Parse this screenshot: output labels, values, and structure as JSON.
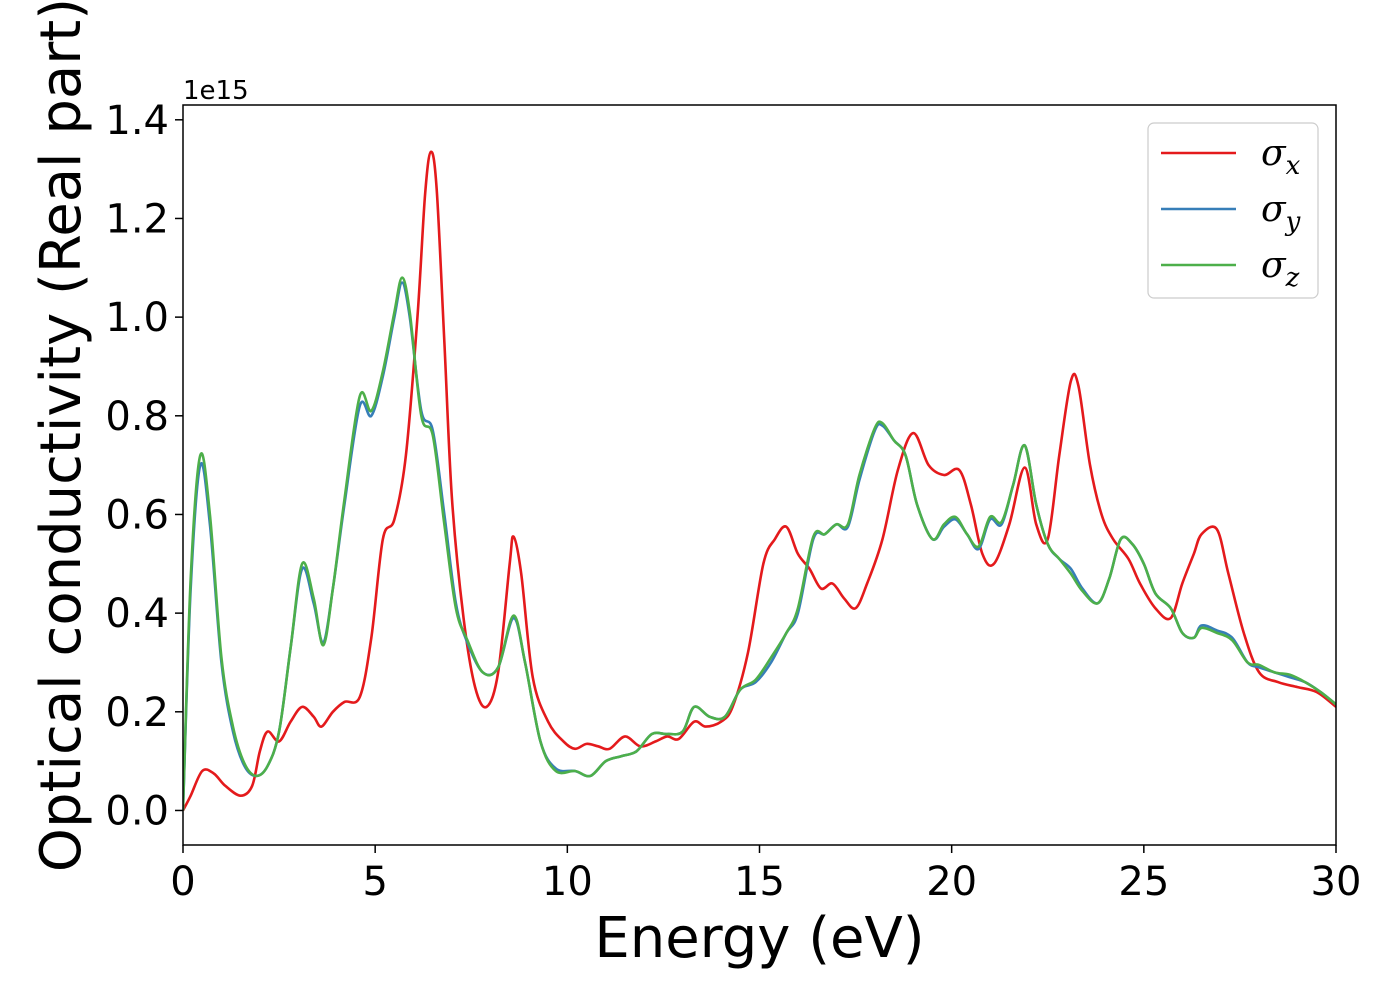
{
  "chart_data": {
    "type": "line",
    "xlabel": "Energy (eV)",
    "ylabel": "Optical conductivity (Real part)",
    "y_offset_text": "1e15",
    "xlim": [
      0,
      30
    ],
    "ylim": [
      -0.07,
      1.43
    ],
    "xticks": [
      0,
      5,
      10,
      15,
      20,
      25,
      30
    ],
    "xtick_labels": [
      "0",
      "5",
      "10",
      "15",
      "20",
      "25",
      "30"
    ],
    "yticks": [
      0.0,
      0.2,
      0.4,
      0.6,
      0.8,
      1.0,
      1.2,
      1.4
    ],
    "ytick_labels": [
      "0.0",
      "0.2",
      "0.4",
      "0.6",
      "0.8",
      "1.0",
      "1.2",
      "1.4"
    ],
    "grid": false,
    "legend_position": "top-right",
    "series": [
      {
        "name": "σx",
        "symbol": "σ",
        "subscript": "x",
        "color": "#e41a1c",
        "points": [
          [
            0,
            0.0
          ],
          [
            0.2,
            0.03
          ],
          [
            0.5,
            0.08
          ],
          [
            0.8,
            0.075
          ],
          [
            1.1,
            0.05
          ],
          [
            1.5,
            0.03
          ],
          [
            1.8,
            0.05
          ],
          [
            2.0,
            0.12
          ],
          [
            2.2,
            0.16
          ],
          [
            2.5,
            0.14
          ],
          [
            2.8,
            0.18
          ],
          [
            3.1,
            0.21
          ],
          [
            3.4,
            0.19
          ],
          [
            3.6,
            0.17
          ],
          [
            3.9,
            0.2
          ],
          [
            4.2,
            0.22
          ],
          [
            4.6,
            0.23
          ],
          [
            4.9,
            0.35
          ],
          [
            5.2,
            0.55
          ],
          [
            5.5,
            0.59
          ],
          [
            5.8,
            0.72
          ],
          [
            6.1,
            1.0
          ],
          [
            6.3,
            1.25
          ],
          [
            6.45,
            1.335
          ],
          [
            6.6,
            1.26
          ],
          [
            6.8,
            0.95
          ],
          [
            7.0,
            0.63
          ],
          [
            7.3,
            0.39
          ],
          [
            7.6,
            0.25
          ],
          [
            7.9,
            0.21
          ],
          [
            8.2,
            0.28
          ],
          [
            8.5,
            0.5
          ],
          [
            8.6,
            0.555
          ],
          [
            8.8,
            0.48
          ],
          [
            9.1,
            0.27
          ],
          [
            9.5,
            0.18
          ],
          [
            9.9,
            0.14
          ],
          [
            10.2,
            0.125
          ],
          [
            10.5,
            0.135
          ],
          [
            10.8,
            0.13
          ],
          [
            11.1,
            0.125
          ],
          [
            11.5,
            0.15
          ],
          [
            11.9,
            0.13
          ],
          [
            12.3,
            0.14
          ],
          [
            12.6,
            0.15
          ],
          [
            12.9,
            0.145
          ],
          [
            13.3,
            0.18
          ],
          [
            13.6,
            0.17
          ],
          [
            14.0,
            0.18
          ],
          [
            14.3,
            0.21
          ],
          [
            14.7,
            0.32
          ],
          [
            15.1,
            0.5
          ],
          [
            15.4,
            0.55
          ],
          [
            15.7,
            0.575
          ],
          [
            16.0,
            0.52
          ],
          [
            16.3,
            0.49
          ],
          [
            16.6,
            0.45
          ],
          [
            16.9,
            0.46
          ],
          [
            17.2,
            0.43
          ],
          [
            17.5,
            0.41
          ],
          [
            17.8,
            0.46
          ],
          [
            18.2,
            0.55
          ],
          [
            18.6,
            0.69
          ],
          [
            19.0,
            0.765
          ],
          [
            19.4,
            0.7
          ],
          [
            19.8,
            0.68
          ],
          [
            20.2,
            0.69
          ],
          [
            20.5,
            0.62
          ],
          [
            20.8,
            0.52
          ],
          [
            21.1,
            0.5
          ],
          [
            21.5,
            0.58
          ],
          [
            21.9,
            0.695
          ],
          [
            22.2,
            0.58
          ],
          [
            22.5,
            0.55
          ],
          [
            22.8,
            0.72
          ],
          [
            23.1,
            0.87
          ],
          [
            23.3,
            0.86
          ],
          [
            23.6,
            0.7
          ],
          [
            23.9,
            0.6
          ],
          [
            24.2,
            0.55
          ],
          [
            24.6,
            0.51
          ],
          [
            24.9,
            0.46
          ],
          [
            25.3,
            0.41
          ],
          [
            25.7,
            0.39
          ],
          [
            26.0,
            0.46
          ],
          [
            26.3,
            0.52
          ],
          [
            26.5,
            0.56
          ],
          [
            26.9,
            0.57
          ],
          [
            27.2,
            0.48
          ],
          [
            27.6,
            0.36
          ],
          [
            28.0,
            0.28
          ],
          [
            28.5,
            0.26
          ],
          [
            29.0,
            0.25
          ],
          [
            29.5,
            0.24
          ],
          [
            30.0,
            0.21
          ]
        ]
      },
      {
        "name": "σy",
        "symbol": "σ",
        "subscript": "y",
        "color": "#377eb8",
        "points": [
          [
            0,
            0.0
          ],
          [
            0.2,
            0.45
          ],
          [
            0.45,
            0.7
          ],
          [
            0.7,
            0.58
          ],
          [
            1.0,
            0.3
          ],
          [
            1.3,
            0.16
          ],
          [
            1.6,
            0.09
          ],
          [
            1.9,
            0.07
          ],
          [
            2.2,
            0.09
          ],
          [
            2.5,
            0.16
          ],
          [
            2.8,
            0.33
          ],
          [
            3.1,
            0.49
          ],
          [
            3.4,
            0.42
          ],
          [
            3.65,
            0.34
          ],
          [
            3.9,
            0.45
          ],
          [
            4.2,
            0.62
          ],
          [
            4.6,
            0.82
          ],
          [
            4.9,
            0.8
          ],
          [
            5.2,
            0.88
          ],
          [
            5.5,
            1.0
          ],
          [
            5.7,
            1.07
          ],
          [
            5.9,
            1.0
          ],
          [
            6.2,
            0.81
          ],
          [
            6.5,
            0.77
          ],
          [
            6.8,
            0.6
          ],
          [
            7.1,
            0.42
          ],
          [
            7.4,
            0.34
          ],
          [
            7.8,
            0.28
          ],
          [
            8.2,
            0.29
          ],
          [
            8.6,
            0.39
          ],
          [
            8.9,
            0.3
          ],
          [
            9.3,
            0.14
          ],
          [
            9.7,
            0.085
          ],
          [
            10.2,
            0.08
          ],
          [
            10.6,
            0.07
          ],
          [
            11.0,
            0.1
          ],
          [
            11.4,
            0.11
          ],
          [
            11.8,
            0.12
          ],
          [
            12.2,
            0.155
          ],
          [
            12.6,
            0.155
          ],
          [
            13.0,
            0.16
          ],
          [
            13.3,
            0.21
          ],
          [
            13.7,
            0.19
          ],
          [
            14.1,
            0.19
          ],
          [
            14.5,
            0.245
          ],
          [
            14.9,
            0.26
          ],
          [
            15.3,
            0.3
          ],
          [
            15.7,
            0.36
          ],
          [
            16.0,
            0.4
          ],
          [
            16.4,
            0.55
          ],
          [
            16.7,
            0.56
          ],
          [
            17.0,
            0.58
          ],
          [
            17.3,
            0.575
          ],
          [
            17.6,
            0.67
          ],
          [
            18.0,
            0.77
          ],
          [
            18.2,
            0.78
          ],
          [
            18.5,
            0.75
          ],
          [
            18.8,
            0.72
          ],
          [
            19.1,
            0.62
          ],
          [
            19.5,
            0.55
          ],
          [
            19.8,
            0.575
          ],
          [
            20.1,
            0.59
          ],
          [
            20.4,
            0.56
          ],
          [
            20.7,
            0.53
          ],
          [
            21.0,
            0.59
          ],
          [
            21.3,
            0.58
          ],
          [
            21.6,
            0.66
          ],
          [
            21.9,
            0.74
          ],
          [
            22.2,
            0.62
          ],
          [
            22.5,
            0.54
          ],
          [
            22.8,
            0.51
          ],
          [
            23.1,
            0.49
          ],
          [
            23.4,
            0.45
          ],
          [
            23.8,
            0.42
          ],
          [
            24.1,
            0.47
          ],
          [
            24.4,
            0.55
          ],
          [
            24.7,
            0.54
          ],
          [
            25.0,
            0.5
          ],
          [
            25.3,
            0.44
          ],
          [
            25.7,
            0.41
          ],
          [
            26.0,
            0.36
          ],
          [
            26.3,
            0.35
          ],
          [
            26.5,
            0.375
          ],
          [
            26.9,
            0.365
          ],
          [
            27.3,
            0.35
          ],
          [
            27.7,
            0.3
          ],
          [
            28.0,
            0.29
          ],
          [
            28.4,
            0.28
          ],
          [
            28.8,
            0.27
          ],
          [
            29.2,
            0.26
          ],
          [
            29.6,
            0.24
          ],
          [
            30.0,
            0.215
          ]
        ]
      },
      {
        "name": "σz",
        "symbol": "σ",
        "subscript": "z",
        "color": "#4daf4a",
        "points": [
          [
            0,
            0.0
          ],
          [
            0.2,
            0.47
          ],
          [
            0.45,
            0.72
          ],
          [
            0.7,
            0.6
          ],
          [
            1.0,
            0.31
          ],
          [
            1.3,
            0.17
          ],
          [
            1.6,
            0.095
          ],
          [
            1.9,
            0.07
          ],
          [
            2.2,
            0.09
          ],
          [
            2.5,
            0.16
          ],
          [
            2.8,
            0.33
          ],
          [
            3.1,
            0.5
          ],
          [
            3.4,
            0.43
          ],
          [
            3.65,
            0.335
          ],
          [
            3.9,
            0.45
          ],
          [
            4.2,
            0.63
          ],
          [
            4.6,
            0.84
          ],
          [
            4.9,
            0.81
          ],
          [
            5.2,
            0.89
          ],
          [
            5.5,
            1.01
          ],
          [
            5.7,
            1.08
          ],
          [
            5.9,
            1.01
          ],
          [
            6.2,
            0.8
          ],
          [
            6.5,
            0.76
          ],
          [
            6.8,
            0.58
          ],
          [
            7.1,
            0.41
          ],
          [
            7.4,
            0.345
          ],
          [
            7.8,
            0.28
          ],
          [
            8.2,
            0.29
          ],
          [
            8.6,
            0.395
          ],
          [
            8.9,
            0.3
          ],
          [
            9.3,
            0.14
          ],
          [
            9.7,
            0.08
          ],
          [
            10.2,
            0.08
          ],
          [
            10.6,
            0.07
          ],
          [
            11.0,
            0.1
          ],
          [
            11.4,
            0.11
          ],
          [
            11.8,
            0.12
          ],
          [
            12.2,
            0.155
          ],
          [
            12.6,
            0.155
          ],
          [
            13.0,
            0.16
          ],
          [
            13.3,
            0.21
          ],
          [
            13.7,
            0.19
          ],
          [
            14.1,
            0.19
          ],
          [
            14.5,
            0.245
          ],
          [
            14.9,
            0.265
          ],
          [
            15.3,
            0.31
          ],
          [
            15.7,
            0.36
          ],
          [
            16.0,
            0.41
          ],
          [
            16.4,
            0.555
          ],
          [
            16.7,
            0.56
          ],
          [
            17.0,
            0.58
          ],
          [
            17.3,
            0.58
          ],
          [
            17.6,
            0.68
          ],
          [
            18.0,
            0.775
          ],
          [
            18.2,
            0.785
          ],
          [
            18.5,
            0.75
          ],
          [
            18.8,
            0.72
          ],
          [
            19.1,
            0.62
          ],
          [
            19.5,
            0.55
          ],
          [
            19.8,
            0.58
          ],
          [
            20.1,
            0.595
          ],
          [
            20.4,
            0.56
          ],
          [
            20.7,
            0.535
          ],
          [
            21.0,
            0.595
          ],
          [
            21.3,
            0.585
          ],
          [
            21.6,
            0.66
          ],
          [
            21.9,
            0.74
          ],
          [
            22.2,
            0.62
          ],
          [
            22.5,
            0.54
          ],
          [
            22.8,
            0.51
          ],
          [
            23.1,
            0.48
          ],
          [
            23.4,
            0.445
          ],
          [
            23.8,
            0.42
          ],
          [
            24.1,
            0.47
          ],
          [
            24.4,
            0.55
          ],
          [
            24.7,
            0.54
          ],
          [
            25.0,
            0.5
          ],
          [
            25.3,
            0.44
          ],
          [
            25.7,
            0.41
          ],
          [
            26.0,
            0.36
          ],
          [
            26.3,
            0.35
          ],
          [
            26.5,
            0.37
          ],
          [
            26.9,
            0.36
          ],
          [
            27.3,
            0.345
          ],
          [
            27.7,
            0.3
          ],
          [
            28.0,
            0.295
          ],
          [
            28.4,
            0.28
          ],
          [
            28.8,
            0.275
          ],
          [
            29.2,
            0.26
          ],
          [
            29.6,
            0.24
          ],
          [
            30.0,
            0.215
          ]
        ]
      }
    ]
  }
}
